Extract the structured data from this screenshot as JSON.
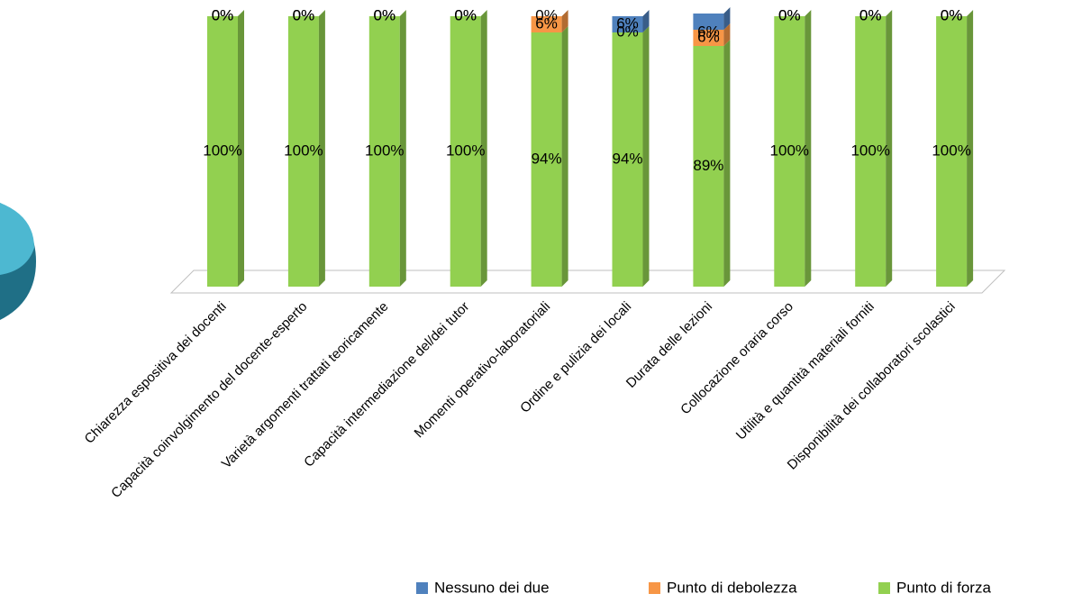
{
  "chart_data": {
    "type": "stacked-bar",
    "categories": [
      "Chiarezza espositiva dei docenti",
      "Capacità coinvolgimento del docente-esperto",
      "Varietà argomenti trattati teoricamente",
      "Capacità intermediazione del/dei tutor",
      "Momenti operativo-laboratoriali",
      "Ordine e pulizia dei locali",
      "Durata delle lezioni",
      "Collocazione oraria corso",
      "Utilità e quantità materiali forniti",
      "Disponibilità dei collaboratori scolastici"
    ],
    "series": [
      {
        "name": "Nessuno dei due",
        "color": "#4f81bd",
        "values": [
          0,
          0,
          0,
          0,
          0,
          6,
          6,
          0,
          0,
          0
        ],
        "value_labels": [
          "0%",
          "0%",
          "0%",
          "0%",
          "0%",
          "6%",
          "6%",
          "0%",
          "0%",
          "0%"
        ]
      },
      {
        "name": "Punto di debolezza",
        "color": "#f79646",
        "values": [
          0,
          0,
          0,
          0,
          6,
          0,
          6,
          0,
          0,
          0
        ],
        "value_labels": [
          "0%",
          "0%",
          "0%",
          "0%",
          "6%",
          "0%",
          "6%",
          "0%",
          "0%",
          "0%"
        ]
      },
      {
        "name": "Punto di forza",
        "color": "#92d050",
        "values": [
          100,
          100,
          100,
          100,
          94,
          94,
          89,
          100,
          100,
          100
        ],
        "value_labels": [
          "100%",
          "100%",
          "100%",
          "100%",
          "94%",
          "94%",
          "89%",
          "100%",
          "100%",
          "100%"
        ]
      }
    ],
    "legend": "bottom-right"
  }
}
